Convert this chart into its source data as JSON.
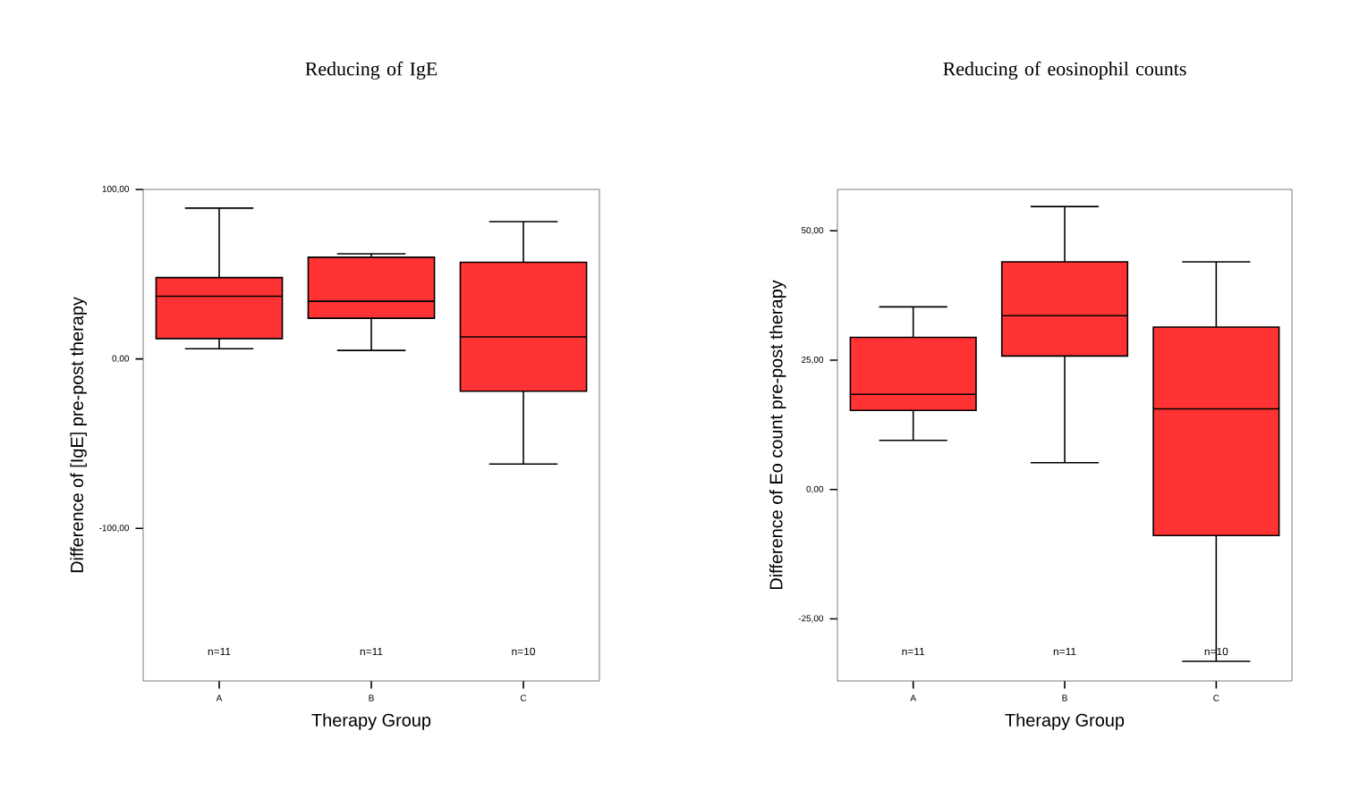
{
  "chart_data": [
    {
      "type": "box",
      "title": "Reducing of IgE",
      "xlabel": "Therapy Group",
      "ylabel": "Difference of [IgE] pre-post therapy",
      "categories": [
        "A",
        "B",
        "C"
      ],
      "series": [
        {
          "color": "#ff3333",
          "boxes": [
            {
              "low": 6,
              "q1": 12,
              "median": 37,
              "q3": 48,
              "high": 89
            },
            {
              "low": 5,
              "q1": 24,
              "median": 34,
              "q3": 60,
              "high": 62
            },
            {
              "low": -62,
              "q1": -19,
              "median": 13,
              "q3": 57,
              "high": 81
            }
          ]
        }
      ],
      "ylim": [
        -190,
        100
      ],
      "yticks": [
        {
          "value": -100,
          "label": "-100,00"
        },
        {
          "value": 0,
          "label": "0,00"
        },
        {
          "value": 100,
          "label": "100,00"
        }
      ],
      "annotations": [
        "n=11",
        "n=11",
        "n=10"
      ]
    },
    {
      "type": "box",
      "title": "Reducing of eosinophil counts",
      "xlabel": "Therapy Group",
      "ylabel": "Difference of Eo count pre-post therapy",
      "categories": [
        "A",
        "B",
        "C"
      ],
      "series": [
        {
          "color": "#ff3333",
          "boxes": [
            {
              "low": 9.5,
              "q1": 15.3,
              "median": 18.4,
              "q3": 29.4,
              "high": 35.3
            },
            {
              "low": 5.2,
              "q1": 25.8,
              "median": 33.6,
              "q3": 44,
              "high": 54.7
            },
            {
              "low": -33.2,
              "q1": -8.9,
              "median": 15.6,
              "q3": 31.4,
              "high": 44
            }
          ]
        }
      ],
      "ylim": [
        -37,
        58
      ],
      "yticks": [
        {
          "value": -25,
          "label": "-25,00"
        },
        {
          "value": 0,
          "label": "0,00"
        },
        {
          "value": 25,
          "label": "25,00"
        },
        {
          "value": 50,
          "label": "50,00"
        }
      ],
      "annotations": [
        "n=11",
        "n=11",
        "n=10"
      ]
    }
  ]
}
